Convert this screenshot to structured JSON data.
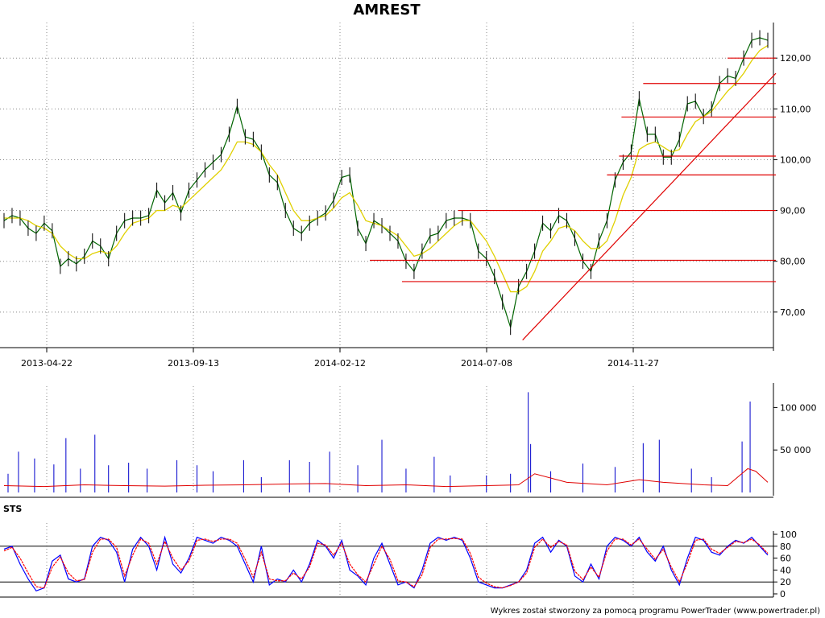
{
  "chart_data": [
    {
      "type": "line",
      "title": "AMREST",
      "ylim": [
        63,
        127
      ],
      "y_ticks": [
        "70,00",
        "80,00",
        "90,00",
        "100,00",
        "110,00",
        "120,00"
      ],
      "x_ticks": [
        "2013-04-22",
        "2013-09-13",
        "2014-02-12",
        "2014-07-08",
        "2014-11-27"
      ],
      "grid": true,
      "series": [
        {
          "style": "close",
          "color": "#006400",
          "x": [
            0,
            10,
            20,
            30,
            40,
            50,
            60,
            70,
            80,
            90,
            100,
            110,
            120,
            130,
            140,
            150,
            160,
            170,
            180,
            190,
            200,
            210,
            220,
            230,
            240,
            250,
            260,
            270,
            280,
            290,
            300,
            310,
            320,
            330,
            340,
            350,
            360,
            370,
            380,
            390,
            400,
            410,
            420,
            430,
            440,
            450,
            460,
            470,
            480,
            490,
            500,
            510,
            520,
            530,
            540,
            550,
            560,
            570,
            580,
            590,
            600,
            610,
            620,
            630,
            640,
            650,
            660,
            670,
            680,
            690,
            700,
            710,
            720,
            730,
            740,
            750,
            760,
            770,
            780,
            790,
            800,
            810,
            820,
            830,
            840,
            850,
            860,
            870,
            880,
            890,
            900,
            910,
            920,
            930,
            940,
            950
          ],
          "values": [
            88,
            89,
            88.5,
            86.5,
            85.5,
            87.5,
            86,
            79,
            80.5,
            79.5,
            81,
            84,
            83,
            80.5,
            85.5,
            88,
            88.5,
            88.5,
            89,
            94,
            91.5,
            93.5,
            89.5,
            94,
            96,
            98,
            99.5,
            101,
            105,
            110.5,
            104.5,
            104,
            101.5,
            97,
            95.5,
            90,
            86.5,
            85.5,
            87.5,
            88.5,
            89.5,
            92,
            96.5,
            97,
            86.5,
            83.5,
            88,
            87,
            85.5,
            84,
            80,
            78,
            82,
            85,
            85.5,
            88,
            88.5,
            88.5,
            88,
            82,
            80.5,
            77,
            72,
            67,
            75,
            78,
            82,
            87.5,
            86,
            89,
            88,
            84.5,
            80,
            78,
            84,
            88,
            96,
            99.5,
            101.5,
            112,
            105,
            105,
            100.5,
            100.5,
            104,
            111,
            111.5,
            108.5,
            110,
            115,
            116.5,
            116,
            120,
            123.5,
            124,
            123.5
          ]
        },
        {
          "style": "ma",
          "color": "#e0d000",
          "x": [
            0,
            10,
            20,
            30,
            40,
            50,
            60,
            70,
            80,
            90,
            100,
            110,
            120,
            130,
            140,
            150,
            160,
            170,
            180,
            190,
            200,
            210,
            220,
            230,
            240,
            250,
            260,
            270,
            280,
            290,
            300,
            310,
            320,
            330,
            340,
            350,
            360,
            370,
            380,
            390,
            400,
            410,
            420,
            430,
            440,
            450,
            460,
            470,
            480,
            490,
            500,
            510,
            520,
            530,
            540,
            550,
            560,
            570,
            580,
            590,
            600,
            610,
            620,
            630,
            640,
            650,
            660,
            670,
            680,
            690,
            700,
            710,
            720,
            730,
            740,
            750,
            760,
            770,
            780,
            790,
            800,
            810,
            820,
            830,
            840,
            850,
            860,
            870,
            880,
            890,
            900,
            910,
            920,
            930,
            940,
            950
          ],
          "values": [
            88.5,
            88.5,
            88.5,
            88,
            87,
            86.5,
            85.5,
            83,
            81.5,
            80.5,
            80.5,
            81.5,
            82,
            81.5,
            83,
            85.5,
            87.5,
            88,
            88.5,
            90,
            90,
            91,
            90.5,
            92,
            93.5,
            95,
            96.5,
            98,
            100.5,
            103.5,
            103.5,
            103,
            101.5,
            99,
            97,
            93.5,
            90,
            88,
            88,
            88.5,
            89,
            90.5,
            92.5,
            93.5,
            91,
            88,
            87.5,
            87,
            86,
            85,
            83,
            81,
            81.5,
            82.5,
            84,
            85.5,
            87,
            88,
            88,
            86,
            84,
            81,
            77.5,
            74,
            74,
            75,
            78,
            82,
            84,
            86.5,
            87,
            86,
            84,
            82.5,
            82.5,
            84,
            88,
            93,
            96.5,
            102,
            103,
            103.5,
            102.5,
            101.5,
            102,
            105,
            107.5,
            108.5,
            109.5,
            111.5,
            113.5,
            115,
            117,
            119.5,
            121.5,
            122.5
          ]
        }
      ],
      "annotations": {
        "horizontal_lines": [
          {
            "x": [
              455,
              960
            ],
            "y": 80.2
          },
          {
            "x": [
              495,
              960
            ],
            "y": 76
          },
          {
            "x": [
              565,
              960
            ],
            "y": 90
          },
          {
            "x": [
              750,
              960
            ],
            "y": 97
          },
          {
            "x": [
              765,
              960
            ],
            "y": 100.7
          },
          {
            "x": [
              768,
              960
            ],
            "y": 108.4
          },
          {
            "x": [
              795,
              960
            ],
            "y": 115
          },
          {
            "x": [
              900,
              960
            ],
            "y": 120
          }
        ],
        "trend_lines": [
          {
            "x": [
              645,
              960
            ],
            "y": [
              64.5,
              117
            ]
          }
        ],
        "color": "#e00000"
      }
    },
    {
      "type": "bar",
      "ylim": [
        0,
        125000
      ],
      "y_ticks": [
        "50 000",
        "100 000"
      ],
      "series": [
        {
          "style": "volume",
          "color": "#0000cc",
          "x": [
            5,
            18,
            38,
            62,
            77,
            95,
            113,
            130,
            155,
            178,
            215,
            240,
            260,
            298,
            320,
            355,
            380,
            405,
            440,
            470,
            500,
            535,
            555,
            600,
            630,
            652,
            655,
            680,
            720,
            760,
            795,
            815,
            855,
            880,
            918,
            928
          ],
          "values": [
            22000,
            48000,
            40000,
            33000,
            64000,
            28000,
            68000,
            32000,
            35000,
            28000,
            38000,
            32000,
            25000,
            38000,
            18000,
            38000,
            36000,
            48000,
            32000,
            62000,
            28000,
            42000,
            20000,
            20000,
            22000,
            118000,
            57000,
            25000,
            34000,
            30000,
            58000,
            62000,
            28000,
            18000,
            60000,
            107000
          ]
        },
        {
          "style": "volume-ma",
          "color": "#e00000",
          "x": [
            0,
            50,
            100,
            150,
            200,
            250,
            300,
            350,
            400,
            450,
            500,
            550,
            600,
            640,
            660,
            700,
            750,
            790,
            820,
            870,
            900,
            925,
            935,
            950
          ],
          "values": [
            8000,
            7000,
            9000,
            8000,
            7500,
            8500,
            9000,
            10000,
            10500,
            8000,
            9000,
            7000,
            8000,
            9000,
            22000,
            12000,
            9000,
            15000,
            12000,
            9000,
            8000,
            28000,
            25000,
            12000
          ]
        }
      ]
    },
    {
      "type": "line",
      "title": "STS",
      "ylim": [
        0,
        100
      ],
      "y_ticks": [
        "0",
        "20",
        "40",
        "60",
        "80",
        "100"
      ],
      "reference_lines": [
        20,
        80
      ],
      "series": [
        {
          "color": "#0000ff",
          "x": [
            0,
            10,
            20,
            30,
            40,
            50,
            60,
            70,
            80,
            90,
            100,
            110,
            120,
            130,
            140,
            150,
            160,
            170,
            180,
            190,
            200,
            210,
            220,
            230,
            240,
            250,
            260,
            270,
            280,
            290,
            300,
            310,
            320,
            330,
            340,
            350,
            360,
            370,
            380,
            390,
            400,
            410,
            420,
            430,
            440,
            450,
            460,
            470,
            480,
            490,
            500,
            510,
            520,
            530,
            540,
            550,
            560,
            570,
            580,
            590,
            600,
            610,
            620,
            630,
            640,
            650,
            660,
            670,
            680,
            690,
            700,
            710,
            720,
            730,
            740,
            750,
            760,
            770,
            780,
            790,
            800,
            810,
            820,
            830,
            840,
            850,
            860,
            870,
            880,
            890,
            900,
            910,
            920,
            930,
            940,
            950
          ],
          "values": [
            75,
            80,
            50,
            25,
            5,
            10,
            55,
            65,
            25,
            20,
            25,
            80,
            95,
            90,
            70,
            20,
            75,
            95,
            80,
            40,
            95,
            50,
            35,
            60,
            95,
            90,
            85,
            95,
            90,
            80,
            50,
            20,
            80,
            15,
            25,
            20,
            40,
            20,
            50,
            90,
            80,
            60,
            90,
            40,
            30,
            15,
            60,
            85,
            50,
            15,
            20,
            10,
            40,
            85,
            95,
            90,
            95,
            90,
            60,
            20,
            15,
            10,
            10,
            15,
            20,
            40,
            85,
            95,
            70,
            90,
            80,
            30,
            20,
            50,
            25,
            80,
            95,
            90,
            80,
            95,
            70,
            55,
            80,
            40,
            15,
            60,
            95,
            90,
            70,
            65,
            80,
            90,
            85,
            95,
            80,
            65
          ]
        },
        {
          "color": "#ff0000",
          "x": [
            0,
            10,
            20,
            30,
            40,
            50,
            60,
            70,
            80,
            90,
            100,
            110,
            120,
            130,
            140,
            150,
            160,
            170,
            180,
            190,
            200,
            210,
            220,
            230,
            240,
            250,
            260,
            270,
            280,
            290,
            300,
            310,
            320,
            330,
            340,
            350,
            360,
            370,
            380,
            390,
            400,
            410,
            420,
            430,
            440,
            450,
            460,
            470,
            480,
            490,
            500,
            510,
            520,
            530,
            540,
            550,
            560,
            570,
            580,
            590,
            600,
            610,
            620,
            630,
            640,
            650,
            660,
            670,
            680,
            690,
            700,
            710,
            720,
            730,
            740,
            750,
            760,
            770,
            780,
            790,
            800,
            810,
            820,
            830,
            840,
            850,
            860,
            870,
            880,
            890,
            900,
            910,
            920,
            930,
            940,
            950
          ],
          "values": [
            72,
            78,
            60,
            35,
            12,
            10,
            45,
            62,
            35,
            22,
            24,
            70,
            92,
            92,
            78,
            30,
            65,
            92,
            85,
            50,
            88,
            60,
            40,
            55,
            90,
            92,
            88,
            92,
            92,
            85,
            58,
            28,
            70,
            25,
            22,
            22,
            35,
            25,
            45,
            85,
            82,
            65,
            85,
            50,
            32,
            20,
            50,
            80,
            58,
            22,
            20,
            12,
            32,
            78,
            92,
            92,
            93,
            92,
            68,
            28,
            18,
            12,
            10,
            14,
            20,
            35,
            78,
            92,
            78,
            88,
            82,
            38,
            24,
            45,
            28,
            72,
            92,
            92,
            82,
            92,
            75,
            58,
            75,
            45,
            20,
            52,
            90,
            92,
            75,
            68,
            78,
            88,
            86,
            92,
            82,
            68
          ]
        }
      ]
    }
  ],
  "footer": "Wykres został stworzony za pomocą programu PowerTrader (www.powertrader.pl)"
}
